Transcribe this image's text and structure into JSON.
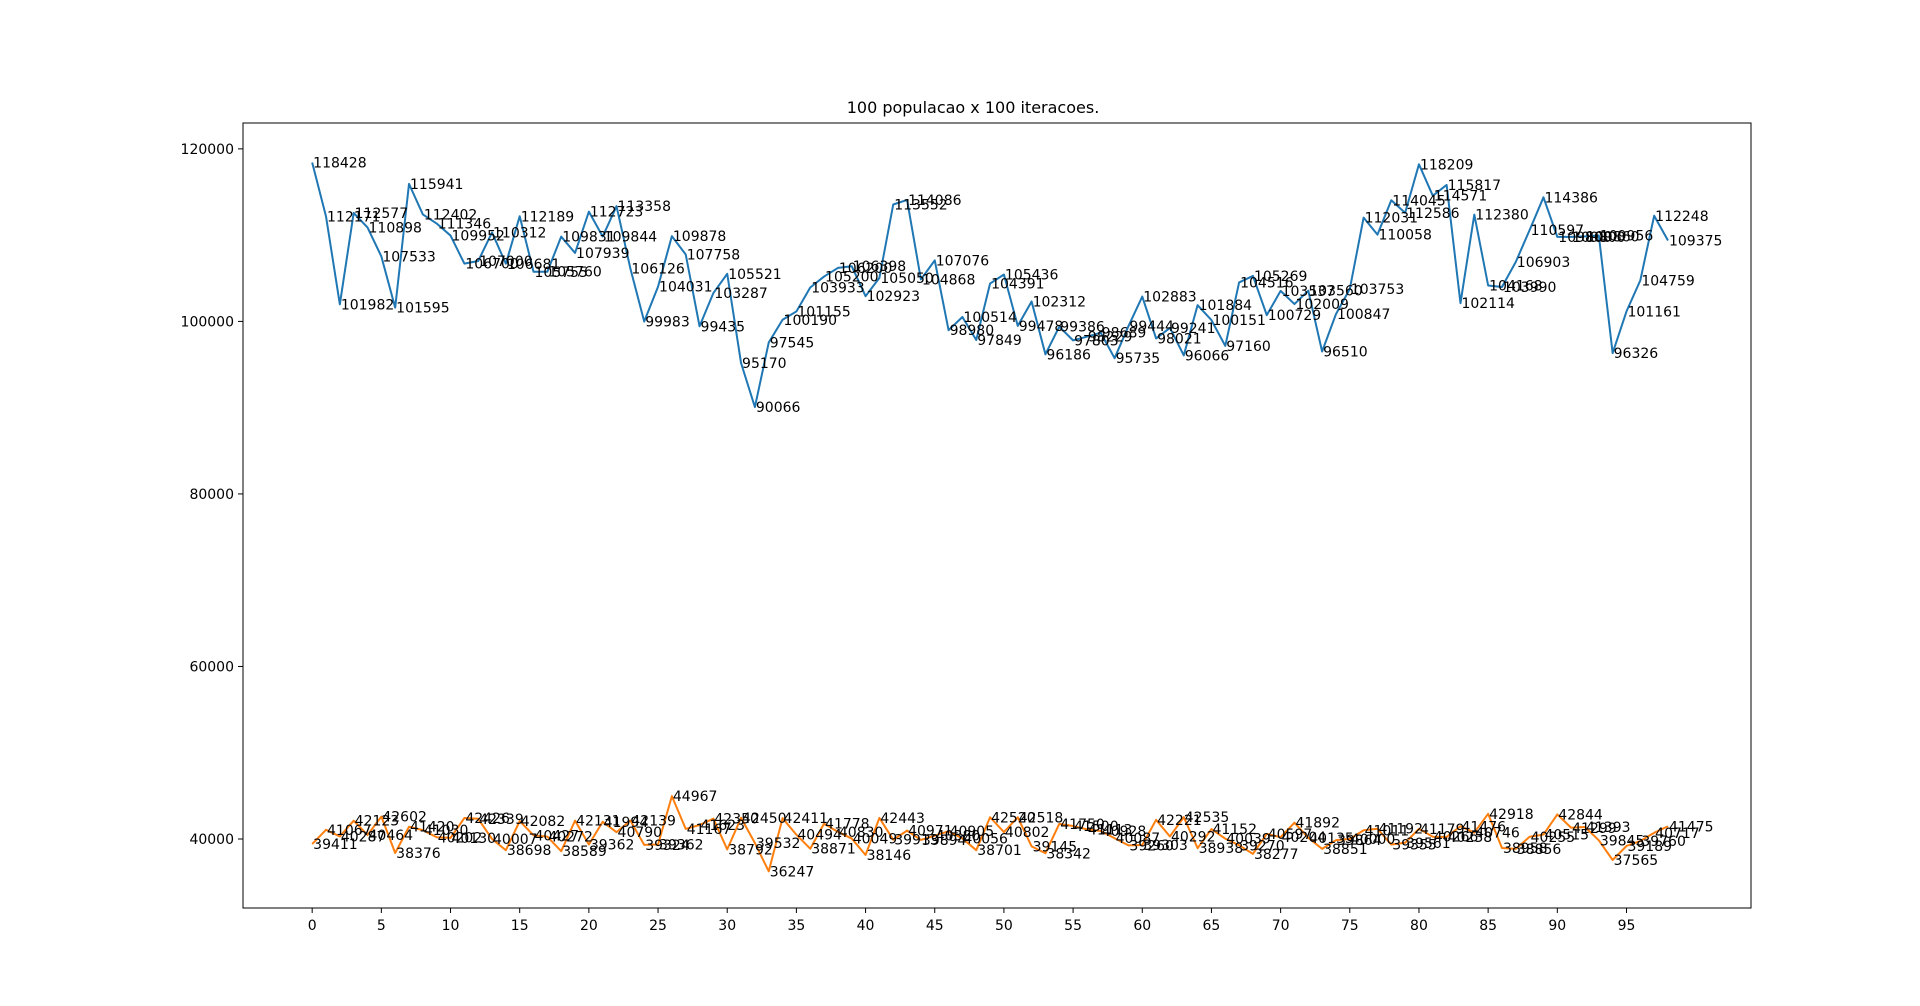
{
  "chart_data": {
    "type": "line",
    "title": "100 populacao x 100 iteracoes.",
    "xlabel": "",
    "ylabel": "",
    "xlim": [
      -5,
      104
    ],
    "ylim": [
      32000,
      123000
    ],
    "grid": false,
    "xticks": [
      0,
      5,
      10,
      15,
      20,
      25,
      30,
      35,
      40,
      45,
      50,
      55,
      60,
      65,
      70,
      75,
      80,
      85,
      90,
      95
    ],
    "xtick_labels": [
      "0",
      "5",
      "10",
      "15",
      "20",
      "25",
      "30",
      "35",
      "40",
      "45",
      "50",
      "55",
      "60",
      "65",
      "70",
      "75",
      "80",
      "85",
      "90",
      "95"
    ],
    "yticks": [
      40000,
      60000,
      80000,
      100000,
      120000
    ],
    "ytick_labels": [
      "40000",
      "60000",
      "80000",
      "100000",
      "120000"
    ],
    "series": [
      {
        "color": "#1f77b4",
        "values": [
          118428,
          112171,
          101982,
          112577,
          110898,
          107533,
          101595,
          115941,
          112402,
          111346,
          109952,
          106700,
          107000,
          110312,
          106681,
          112189,
          105755,
          105760,
          109831,
          107939,
          112723,
          109844,
          113358,
          106126,
          99983,
          104031,
          109878,
          107758,
          99435,
          103287,
          105521,
          95170,
          90066,
          97545,
          100190,
          101155,
          103933,
          105200,
          106200,
          106398,
          102923,
          105050,
          113552,
          114086,
          104868,
          107076,
          98980,
          100514,
          97849,
          104391,
          105436,
          99478,
          102312,
          96186,
          99386,
          97803,
          98229,
          98689,
          95735,
          99444,
          102883,
          98021,
          99241,
          96066,
          101884,
          100151,
          97160,
          104516,
          105269,
          100729,
          103537,
          102009,
          103560,
          96510,
          100847,
          103753,
          112031,
          110058,
          114045,
          112586,
          118209,
          114571,
          115817,
          102114,
          112380,
          104168,
          103990,
          106903,
          110597,
          114386,
          109800,
          109800,
          109860,
          109956,
          96326,
          101161,
          104759,
          112248,
          109375
        ],
        "labels": [
          "118428",
          "112171",
          "101982",
          "112577",
          "110898",
          "107533",
          "101595",
          "115941",
          "112402",
          "111346",
          "109952",
          "106700",
          "107000",
          "110312",
          "106681",
          "112189",
          "105755",
          "105760",
          "109831",
          "107939",
          "112723",
          "109844",
          "113358",
          "106126",
          "99983",
          "104031",
          "109878",
          "107758",
          "99435",
          "103287",
          "105521",
          "95170",
          "90066",
          "97545",
          "100190",
          "101155",
          "103933",
          "105200",
          "106200",
          "106398",
          "102923",
          "105050",
          "113552",
          "114086",
          "104868",
          "107076",
          "98980",
          "100514",
          "97849",
          "104391",
          "105436",
          "99478",
          "102312",
          "96186",
          "99386",
          "97803",
          "98229",
          "98689",
          "95735",
          "99444",
          "102883",
          "98021",
          "99241",
          "96066",
          "101884",
          "100151",
          "97160",
          "104516",
          "105269",
          "100729",
          "103537",
          "102009",
          "103560",
          "96510",
          "100847",
          "103753",
          "112031",
          "110058",
          "114045",
          "112586",
          "118209",
          "114571",
          "115817",
          "102114",
          "112380",
          "104168",
          "103990",
          "106903",
          "110597",
          "114386",
          "109800",
          "109800",
          "109860",
          "109956",
          "96326",
          "101161",
          "104759",
          "112248",
          "109375"
        ]
      },
      {
        "color": "#ff7f0e",
        "values": [
          39411,
          41067,
          40287,
          42123,
          40464,
          42602,
          38376,
          41420,
          41030,
          40202,
          40130,
          42426,
          42339,
          40007,
          38698,
          42082,
          40427,
          40272,
          38589,
          42131,
          39362,
          41994,
          40790,
          42139,
          39324,
          39362,
          44967,
          41167,
          41623,
          42350,
          38792,
          42450,
          39532,
          36247,
          42411,
          40494,
          38871,
          41778,
          40830,
          40049,
          38146,
          42443,
          39913,
          40971,
          39894,
          40380,
          40905,
          40056,
          38701,
          42520,
          40802,
          42518,
          39145,
          38342,
          41750,
          41500,
          41113,
          40928,
          40087,
          39260,
          39303,
          42221,
          40292,
          42535,
          38938,
          41152,
          40039,
          39270,
          38277,
          40597,
          40204,
          41892,
          40135,
          38851,
          39864,
          40000,
          41011,
          41192,
          39355,
          39561,
          41179,
          40266,
          40238,
          41476,
          40746,
          42918,
          38958,
          38856,
          40255,
          40515,
          42844,
          41299,
          41393,
          39845,
          37565,
          39189,
          39760,
          40717,
          41475
        ],
        "labels": [
          "39411",
          "41067",
          "40287",
          "42123",
          "40464",
          "42602",
          "38376",
          "41420",
          "41030",
          "40202",
          "40130",
          "42426",
          "42339",
          "40007",
          "38698",
          "42082",
          "40427",
          "40272",
          "38589",
          "42131",
          "39362",
          "41994",
          "40790",
          "42139",
          "39324",
          "39362",
          "44967",
          "41167",
          "41623",
          "42350",
          "38792",
          "42450",
          "39532",
          "36247",
          "42411",
          "40494",
          "38871",
          "41778",
          "40830",
          "40049",
          "38146",
          "42443",
          "39913",
          "40971",
          "39894",
          "40380",
          "40905",
          "40056",
          "38701",
          "42520",
          "40802",
          "42518",
          "39145",
          "38342",
          "41750",
          "41500",
          "41113",
          "40928",
          "40087",
          "39260",
          "39303",
          "42221",
          "40292",
          "42535",
          "38938",
          "41152",
          "40039",
          "39270",
          "38277",
          "40597",
          "40204",
          "41892",
          "40135",
          "38851",
          "39864",
          "40000",
          "41011",
          "41192",
          "39355",
          "39561",
          "41179",
          "40266",
          "40238",
          "41476",
          "40746",
          "42918",
          "38958",
          "38856",
          "40255",
          "40515",
          "42844",
          "41299",
          "41393",
          "39845",
          "37565",
          "39189",
          "39760",
          "40717",
          "41475"
        ]
      }
    ]
  }
}
